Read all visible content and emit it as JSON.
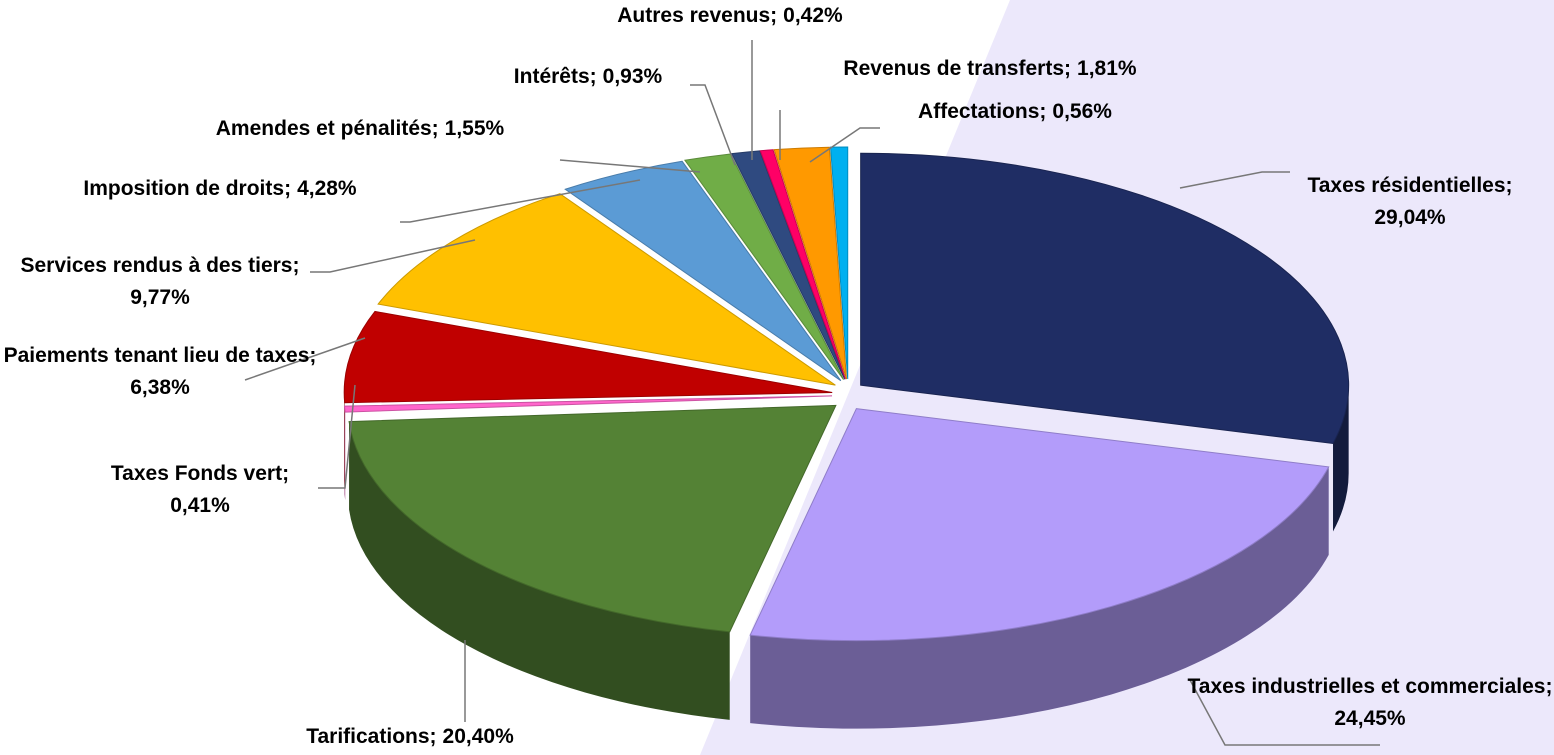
{
  "chart_data": {
    "type": "pie",
    "categories": [
      "Taxes résidentielles",
      "Taxes industrielles et commerciales",
      "Tarifications",
      "Taxes Fonds vert",
      "Paiements tenant lieu de taxes",
      "Services rendus à des tiers",
      "Imposition de droits",
      "Amendes et pénalités",
      "Intérêts",
      "Autres revenus",
      "Revenus de transferts",
      "Affectations"
    ],
    "values": [
      29.04,
      24.45,
      20.4,
      0.41,
      6.38,
      9.77,
      4.28,
      1.55,
      0.93,
      0.42,
      1.81,
      0.56
    ],
    "value_labels": [
      "29,04%",
      "24,45%",
      "20,40%",
      "0,41%",
      "6,38%",
      "9,77%",
      "4,28%",
      "1,55%",
      "0,93%",
      "0,42%",
      "1,81%",
      "0,56%"
    ],
    "label_separator": ";",
    "colors": [
      "#1f2d64",
      "#b39cfa",
      "#548235",
      "#ff66cc",
      "#c00000",
      "#ffc000",
      "#5b9bd5",
      "#70ad47",
      "#2f4a80",
      "#ff0066",
      "#ff9900",
      "#00b0f0"
    ]
  }
}
